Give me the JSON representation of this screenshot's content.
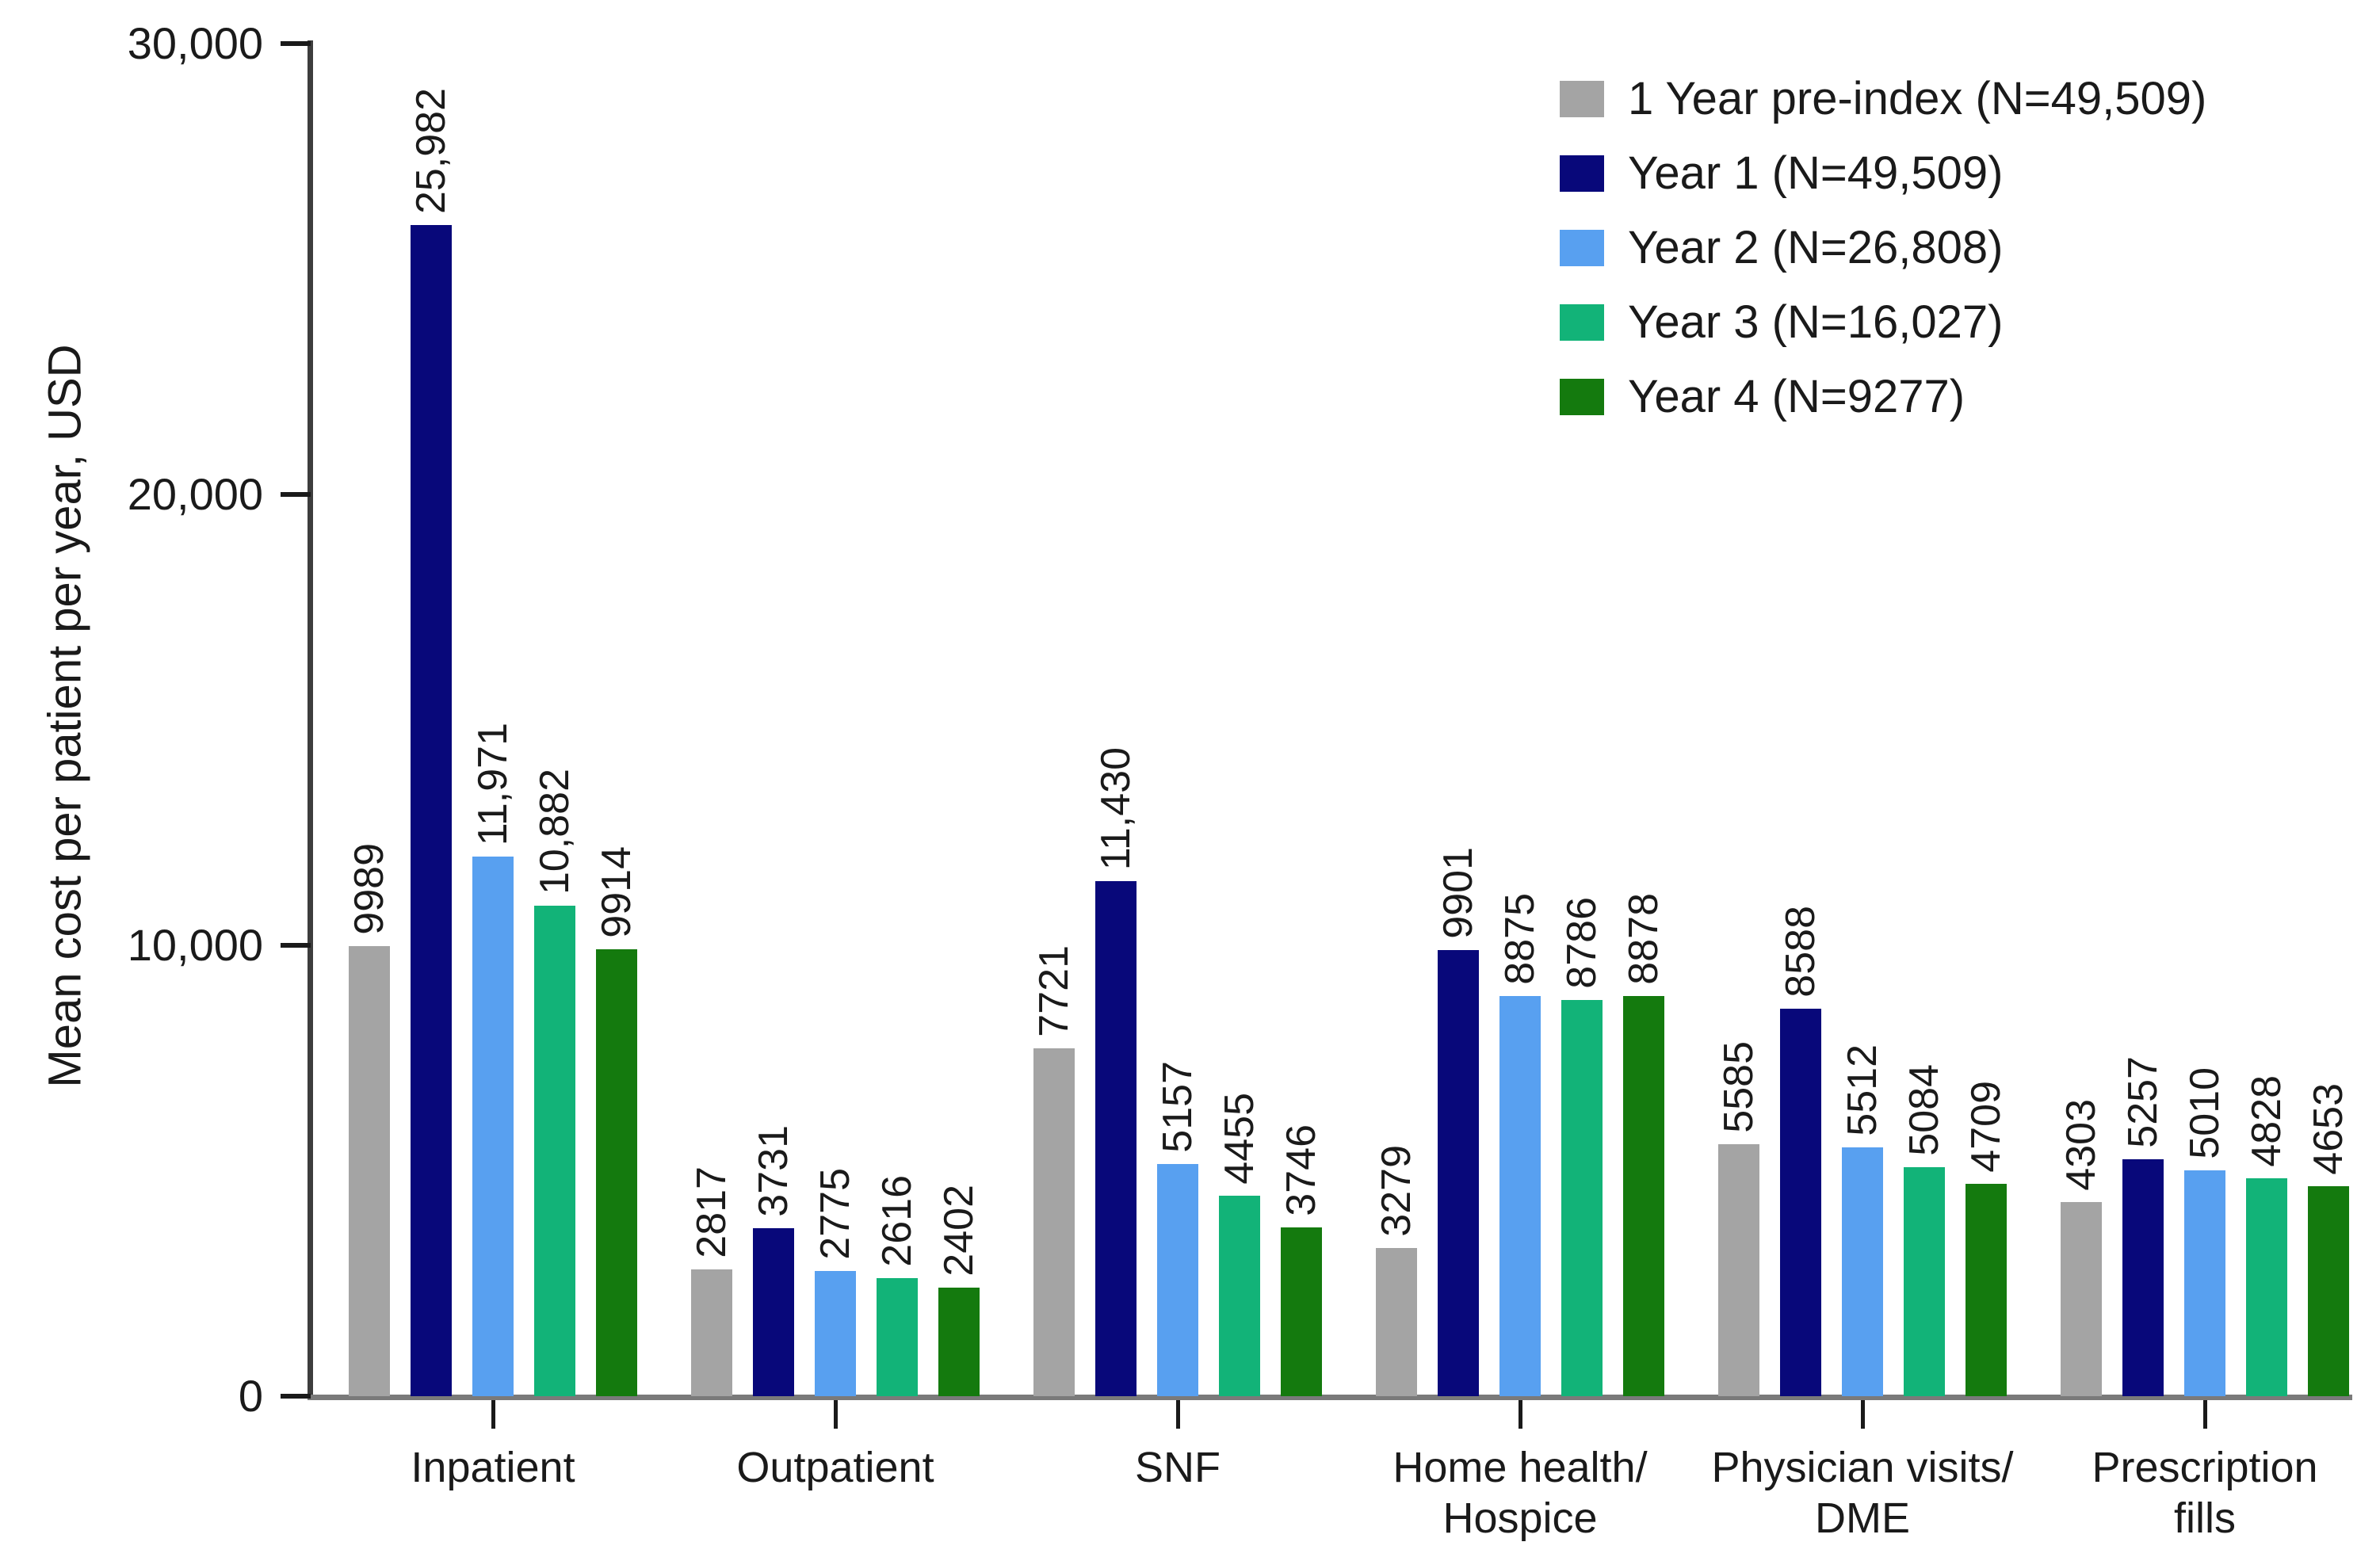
{
  "chart_data": {
    "type": "bar",
    "title": "",
    "xlabel": "",
    "ylabel": "Mean cost per patient per year, USD",
    "ylim": [
      0,
      30000
    ],
    "grid": false,
    "legend_position": "top-right",
    "yticks": [
      {
        "value": 0,
        "label": "0"
      },
      {
        "value": 10000,
        "label": "10,000"
      },
      {
        "value": 20000,
        "label": "20,000"
      },
      {
        "value": 30000,
        "label": "30,000"
      }
    ],
    "categories": [
      "Inpatient",
      "Outpatient",
      "SNF",
      "Home health/\nHospice",
      "Physician visits/\nDME",
      "Prescription\nfills"
    ],
    "series": [
      {
        "name": "1 Year pre-index (N=49,509)",
        "color": "#a4a4a4",
        "values": [
          9989,
          2817,
          7721,
          3279,
          5585,
          4303
        ],
        "labels": [
          "9989",
          "2817",
          "7721",
          "3279",
          "5585",
          "4303"
        ]
      },
      {
        "name": "Year 1 (N=49,509)",
        "color": "#08087a",
        "values": [
          25982,
          3731,
          11430,
          9901,
          8588,
          5257
        ],
        "labels": [
          "25,982",
          "3731",
          "11,430",
          "9901",
          "8588",
          "5257"
        ]
      },
      {
        "name": "Year 2 (N=26,808)",
        "color": "#58a0f0",
        "values": [
          11971,
          2775,
          5157,
          8875,
          5512,
          5010
        ],
        "labels": [
          "11,971",
          "2775",
          "5157",
          "8875",
          "5512",
          "5010"
        ]
      },
      {
        "name": "Year 3 (N=16,027)",
        "color": "#12b378",
        "values": [
          10882,
          2616,
          4455,
          8786,
          5084,
          4828
        ],
        "labels": [
          "10,882",
          "2616",
          "4455",
          "8786",
          "5084",
          "4828"
        ]
      },
      {
        "name": "Year 4 (N=9277)",
        "color": "#147a0e",
        "values": [
          9914,
          2402,
          3746,
          8878,
          4709,
          4653
        ],
        "labels": [
          "9914",
          "2402",
          "3746",
          "8878",
          "4709",
          "4653"
        ]
      }
    ]
  }
}
